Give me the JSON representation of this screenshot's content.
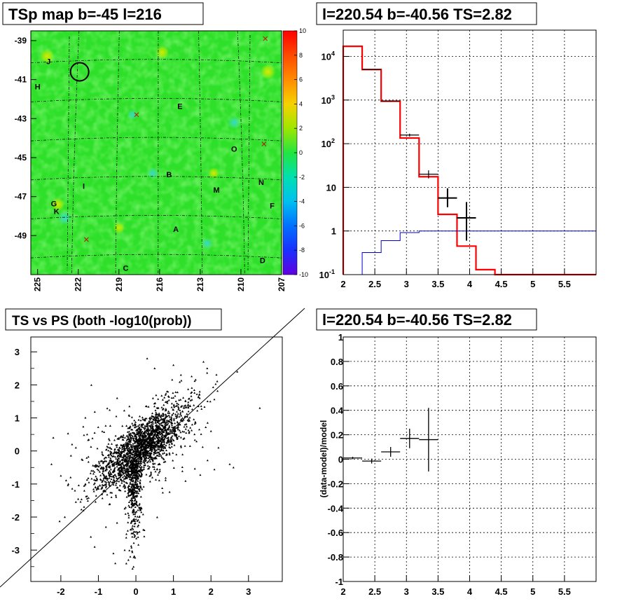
{
  "chart_data": [
    {
      "type": "heatmap",
      "title": "TSp map b=-45 l=216",
      "x_ticks": [
        "225",
        "222",
        "219",
        "216",
        "213",
        "210",
        "207"
      ],
      "y_ticks": [
        "-39",
        "-41",
        "-43",
        "-45",
        "-47",
        "-49"
      ],
      "colorbar_ticks": [
        "10",
        "8",
        "6",
        "4",
        "2",
        "0",
        "-2",
        "-4",
        "-6",
        "-8",
        "-10"
      ],
      "zlim": [
        -10,
        10
      ],
      "xlim": [
        225.5,
        207
      ],
      "ylim": [
        -51,
        -38.5
      ],
      "sources": [
        {
          "label": "J",
          "l": 224.2,
          "b": -40.2
        },
        {
          "label": "H",
          "l": 225.0,
          "b": -41.5
        },
        {
          "label": "E",
          "l": 214.5,
          "b": -42.5
        },
        {
          "label": "O",
          "l": 210.5,
          "b": -44.7
        },
        {
          "label": "B",
          "l": 215.3,
          "b": -46.0
        },
        {
          "label": "N",
          "l": 208.5,
          "b": -46.4
        },
        {
          "label": "M",
          "l": 211.8,
          "b": -46.8
        },
        {
          "label": "G",
          "l": 223.8,
          "b": -47.5
        },
        {
          "label": "F",
          "l": 207.7,
          "b": -47.6
        },
        {
          "label": "K",
          "l": 223.6,
          "b": -47.9
        },
        {
          "label": "A",
          "l": 214.8,
          "b": -48.8
        },
        {
          "label": "D",
          "l": 208.4,
          "b": -50.4
        },
        {
          "label": "C",
          "l": 218.5,
          "b": -50.8
        },
        {
          "label": "I",
          "l": 221.6,
          "b": -46.6
        }
      ],
      "hot_spots": [
        {
          "l": 224.3,
          "b": -39.8,
          "v": 4.5
        },
        {
          "l": 215.8,
          "b": -39.6,
          "v": 4
        },
        {
          "l": 208.0,
          "b": -40.6,
          "v": 5
        },
        {
          "l": 223.5,
          "b": -47.4,
          "v": 4
        },
        {
          "l": 219.0,
          "b": -48.6,
          "v": 3
        },
        {
          "l": 212.0,
          "b": -45.8,
          "v": 3
        }
      ],
      "cold_spots": [
        {
          "l": 223.0,
          "b": -48.1,
          "v": -3
        },
        {
          "l": 210.5,
          "b": -43.2,
          "v": -2.5
        },
        {
          "l": 216.5,
          "b": -45.8,
          "v": -2
        },
        {
          "l": 212.5,
          "b": -49.4,
          "v": -2
        },
        {
          "l": 218.0,
          "b": -42.8,
          "v": -1.5
        }
      ],
      "circle": {
        "l": 221.9,
        "b": -40.6
      },
      "crosses": [
        {
          "l": 208.2,
          "b": -38.9
        },
        {
          "l": 208.3,
          "b": -44.3
        },
        {
          "l": 217.7,
          "b": -42.8
        },
        {
          "l": 221.4,
          "b": -49.2
        }
      ]
    },
    {
      "type": "line",
      "title": "l=220.54 b=-40.56 TS=2.82",
      "xlim": [
        2,
        6
      ],
      "ylim": [
        0.1,
        40000
      ],
      "log_y": true,
      "x_ticks": [
        "2",
        "2.5",
        "3",
        "3.5",
        "4",
        "4.5",
        "5",
        "5.5"
      ],
      "y_ticks": [
        "10^4",
        "10^3",
        "10^2",
        "10",
        "1",
        "10^-1"
      ],
      "edges": [
        2.0,
        2.3,
        2.6,
        2.9,
        3.2,
        3.5,
        3.8,
        4.1,
        4.4,
        4.7,
        5.0,
        5.3,
        5.6,
        6.0
      ],
      "series": [
        {
          "color": "#ff0000",
          "values": [
            17000,
            5000,
            940,
            135,
            17.5,
            2.4,
            0.45,
            0.13,
            0.09,
            0.09,
            0.09,
            0.09,
            0.09
          ]
        },
        {
          "color": "#0000cc",
          "values": [
            0.09,
            0.32,
            0.6,
            0.92,
            1.0,
            1.0,
            1.0,
            1.0,
            1.0,
            1.0,
            1.0,
            1.0,
            1.0
          ]
        }
      ],
      "data_points": [
        {
          "x": 2.45,
          "xerr": 0.15,
          "y": 5000,
          "ylo": 4900,
          "yhi": 5100
        },
        {
          "x": 2.75,
          "xerr": 0.15,
          "y": 950,
          "ylo": 920,
          "yhi": 980
        },
        {
          "x": 3.05,
          "xerr": 0.15,
          "y": 158,
          "ylo": 146,
          "yhi": 170
        },
        {
          "x": 3.35,
          "xerr": 0.15,
          "y": 20,
          "ylo": 16,
          "yhi": 24.5
        },
        {
          "x": 3.65,
          "xerr": 0.15,
          "y": 5.7,
          "ylo": 3.5,
          "yhi": 9.5
        },
        {
          "x": 3.95,
          "xerr": 0.15,
          "y": 2.0,
          "ylo": 0.6,
          "yhi": 4.6
        }
      ]
    },
    {
      "type": "scatter",
      "title": "TS vs PS (both -log10(prob))",
      "xlim": [
        -2.8,
        3.9
      ],
      "ylim": [
        -3.95,
        3.45
      ],
      "x_ticks": [
        "-2",
        "-1",
        "0",
        "1",
        "2",
        "3"
      ],
      "y_ticks": [
        "3",
        "2",
        "1",
        "0",
        "-1",
        "-2",
        "-3"
      ],
      "reference_line": {
        "x0": -3.5,
        "y0": -3.5,
        "x1": 4.5,
        "y1": 4.5
      },
      "n_points": 5200,
      "outliers": [
        [
          -2.2,
          0.4
        ],
        [
          -2.25,
          -0.4
        ],
        [
          -2.0,
          -0.75
        ],
        [
          -1.7,
          0.2
        ],
        [
          -1.6,
          0.1
        ],
        [
          -1.3,
          0.5
        ],
        [
          -1.1,
          0.55
        ],
        [
          -1.4,
          -1.8
        ],
        [
          -1.2,
          -2.6
        ],
        [
          -1.1,
          -2.9
        ],
        [
          -0.8,
          -2.3
        ],
        [
          -0.6,
          -3.1
        ],
        [
          -0.55,
          -3.4
        ],
        [
          -0.3,
          -3.0
        ],
        [
          -0.2,
          -3.3
        ],
        [
          -0.15,
          -3.2
        ],
        [
          2.0,
          0.6
        ],
        [
          2.5,
          -0.4
        ],
        [
          2.6,
          -0.5
        ],
        [
          2.7,
          2.4
        ],
        [
          3.3,
          1.3
        ],
        [
          1.9,
          2.5
        ],
        [
          1.8,
          2.7
        ],
        [
          1.0,
          2.6
        ],
        [
          1.2,
          2.3
        ],
        [
          1.5,
          0.8
        ],
        [
          1.7,
          1.6
        ],
        [
          2.2,
          0.1
        ],
        [
          -0.5,
          1.6
        ],
        [
          0.3,
          2.8
        ],
        [
          0.5,
          2.5
        ],
        [
          -1.8,
          -1.0
        ]
      ]
    },
    {
      "type": "scatter",
      "title": "l=220.54 b=-40.56 TS=2.82",
      "ylabel": "(data-model)/model",
      "xlim": [
        2,
        6
      ],
      "ylim": [
        -1,
        1
      ],
      "x_ticks": [
        "2",
        "2.5",
        "3",
        "3.5",
        "4",
        "4.5",
        "5",
        "5.5"
      ],
      "y_ticks": [
        "1",
        "0.8",
        "0.6",
        "0.4",
        "0.2",
        "0",
        "-0.2",
        "-0.4",
        "-0.6",
        "-0.8",
        "-1"
      ],
      "data_points": [
        {
          "x": 2.15,
          "xerr": 0.15,
          "y": 0.01,
          "yerr": 0.01
        },
        {
          "x": 2.45,
          "xerr": 0.15,
          "y": -0.015,
          "yerr": 0.02
        },
        {
          "x": 2.75,
          "xerr": 0.15,
          "y": 0.06,
          "yerr": 0.04
        },
        {
          "x": 3.05,
          "xerr": 0.15,
          "y": 0.17,
          "yerr": 0.08
        },
        {
          "x": 3.35,
          "xerr": 0.15,
          "y": 0.16,
          "yerr": 0.26
        }
      ]
    }
  ]
}
